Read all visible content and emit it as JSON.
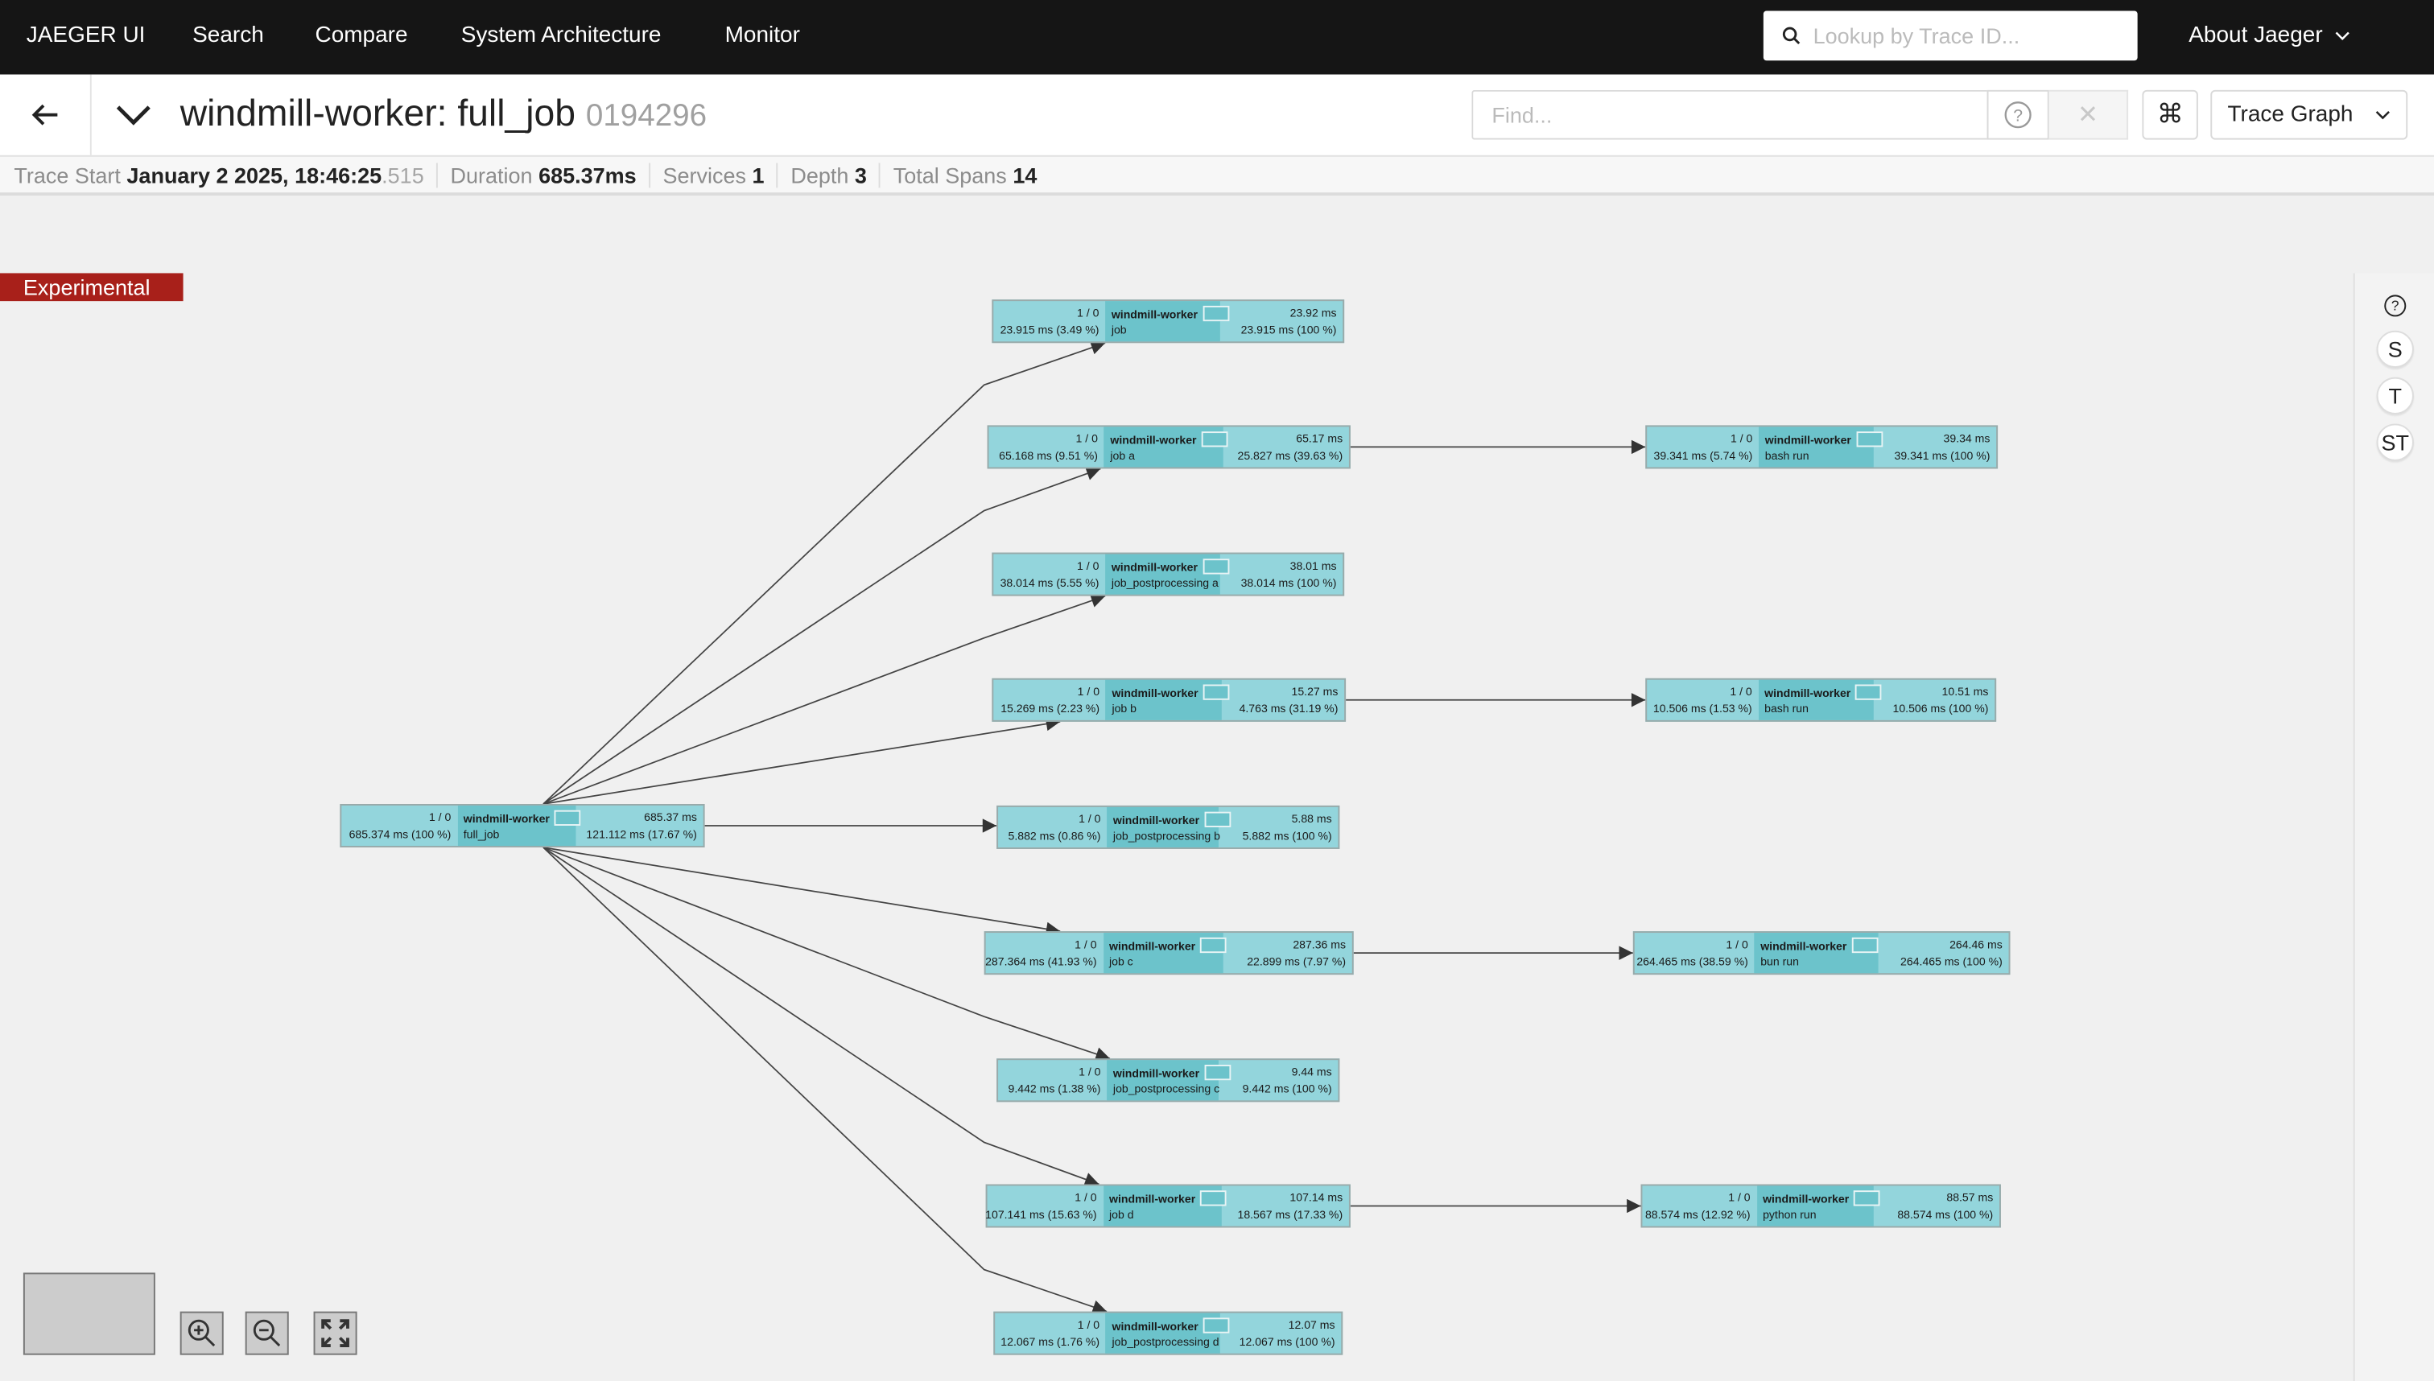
{
  "topnav": {
    "brand": "JAEGER UI",
    "items": [
      "Search",
      "Compare",
      "System Architecture",
      "Monitor"
    ],
    "lookup_placeholder": "Lookup by Trace ID...",
    "about": "About Jaeger"
  },
  "trace": {
    "title": "windmill-worker: full_job",
    "trace_id": "0194296",
    "find_placeholder": "Find...",
    "clear_label": "✕",
    "shortcut_label": "⌘",
    "view_mode": "Trace Graph"
  },
  "summary": {
    "trace_start_label": "Trace Start",
    "trace_start": "January 2 2025, 18:46:25",
    "trace_start_ms": ".515",
    "duration_label": "Duration",
    "duration": "685.37ms",
    "services_label": "Services",
    "services": "1",
    "depth_label": "Depth",
    "depth": "3",
    "total_spans_label": "Total Spans",
    "total_spans": "14"
  },
  "graph": {
    "badge": "Experimental",
    "side_buttons": [
      "S",
      "T",
      "ST"
    ],
    "colors": {
      "node_light": "#93d5dc",
      "node_mid": "#6cc3cb",
      "badge": "#a8201a"
    },
    "nodes": [
      {
        "id": "full_job",
        "count": "1 / 0",
        "total": "685.374 ms (100 %)",
        "service": "windmill-worker",
        "operation": "full_job",
        "duration": "685.37 ms",
        "self": "121.112 ms (17.67 %)"
      },
      {
        "id": "job",
        "count": "1 / 0",
        "total": "23.915 ms (3.49 %)",
        "service": "windmill-worker",
        "operation": "job",
        "duration": "23.92 ms",
        "self": "23.915 ms (100 %)"
      },
      {
        "id": "job_a",
        "count": "1 / 0",
        "total": "65.168 ms (9.51 %)",
        "service": "windmill-worker",
        "operation": "job a",
        "duration": "65.17 ms",
        "self": "25.827 ms (39.63 %)"
      },
      {
        "id": "jpp_a",
        "count": "1 / 0",
        "total": "38.014 ms (5.55 %)",
        "service": "windmill-worker",
        "operation": "job_postprocessing a",
        "duration": "38.01 ms",
        "self": "38.014 ms (100 %)"
      },
      {
        "id": "job_b",
        "count": "1 / 0",
        "total": "15.269 ms (2.23 %)",
        "service": "windmill-worker",
        "operation": "job b",
        "duration": "15.27 ms",
        "self": "4.763 ms (31.19 %)"
      },
      {
        "id": "jpp_b",
        "count": "1 / 0",
        "total": "5.882 ms (0.86 %)",
        "service": "windmill-worker",
        "operation": "job_postprocessing b",
        "duration": "5.88 ms",
        "self": "5.882 ms (100 %)"
      },
      {
        "id": "job_c",
        "count": "1 / 0",
        "total": "287.364 ms (41.93 %)",
        "service": "windmill-worker",
        "operation": "job c",
        "duration": "287.36 ms",
        "self": "22.899 ms (7.97 %)"
      },
      {
        "id": "jpp_c",
        "count": "1 / 0",
        "total": "9.442 ms (1.38 %)",
        "service": "windmill-worker",
        "operation": "job_postprocessing c",
        "duration": "9.44 ms",
        "self": "9.442 ms (100 %)"
      },
      {
        "id": "job_d",
        "count": "1 / 0",
        "total": "107.141 ms (15.63 %)",
        "service": "windmill-worker",
        "operation": "job d",
        "duration": "107.14 ms",
        "self": "18.567 ms (17.33 %)"
      },
      {
        "id": "jpp_d",
        "count": "1 / 0",
        "total": "12.067 ms (1.76 %)",
        "service": "windmill-worker",
        "operation": "job_postprocessing d",
        "duration": "12.07 ms",
        "self": "12.067 ms (100 %)"
      },
      {
        "id": "bash_a",
        "count": "1 / 0",
        "total": "39.341 ms (5.74 %)",
        "service": "windmill-worker",
        "operation": "bash run",
        "duration": "39.34 ms",
        "self": "39.341 ms (100 %)"
      },
      {
        "id": "bash_b",
        "count": "1 / 0",
        "total": "10.506 ms (1.53 %)",
        "service": "windmill-worker",
        "operation": "bash run",
        "duration": "10.51 ms",
        "self": "10.506 ms (100 %)"
      },
      {
        "id": "bun",
        "count": "1 / 0",
        "total": "264.465 ms (38.59 %)",
        "service": "windmill-worker",
        "operation": "bun run",
        "duration": "264.46 ms",
        "self": "264.465 ms (100 %)"
      },
      {
        "id": "python",
        "count": "1 / 0",
        "total": "88.574 ms (12.92 %)",
        "service": "windmill-worker",
        "operation": "python run",
        "duration": "88.57 ms",
        "self": "88.574 ms (100 %)"
      }
    ],
    "edges": [
      [
        "full_job",
        "job"
      ],
      [
        "full_job",
        "job_a"
      ],
      [
        "full_job",
        "jpp_a"
      ],
      [
        "full_job",
        "job_b"
      ],
      [
        "full_job",
        "jpp_b"
      ],
      [
        "full_job",
        "job_c"
      ],
      [
        "full_job",
        "jpp_c"
      ],
      [
        "full_job",
        "job_d"
      ],
      [
        "full_job",
        "jpp_d"
      ],
      [
        "job_a",
        "bash_a"
      ],
      [
        "job_b",
        "bash_b"
      ],
      [
        "job_c",
        "bun"
      ],
      [
        "job_d",
        "python"
      ]
    ]
  }
}
